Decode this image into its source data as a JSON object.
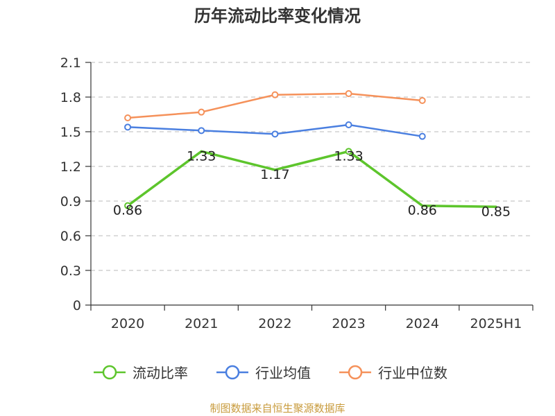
{
  "chart_data": {
    "type": "line",
    "title": "历年流动比率变化情况",
    "categories": [
      "2020",
      "2021",
      "2022",
      "2023",
      "2024",
      "2025H1"
    ],
    "ylim": [
      0,
      2.1
    ],
    "yticks": [
      "0",
      "0.3",
      "0.6",
      "0.9",
      "1.2",
      "1.5",
      "1.8",
      "2.1"
    ],
    "grid": true,
    "legend_position": "bottom",
    "series": [
      {
        "name": "流动比率",
        "color": "#5dc52c",
        "values": [
          0.86,
          1.33,
          1.17,
          1.33,
          0.86,
          0.85
        ],
        "labels": [
          "0.86",
          "1.33",
          "1.17",
          "1.33",
          "0.86",
          "0.85"
        ]
      },
      {
        "name": "行业均值",
        "color": "#4a7fe0",
        "values": [
          1.54,
          1.51,
          1.48,
          1.56,
          1.46,
          null
        ]
      },
      {
        "name": "行业中位数",
        "color": "#f5915a",
        "values": [
          1.62,
          1.67,
          1.82,
          1.83,
          1.77,
          null
        ]
      }
    ]
  },
  "source": {
    "text": "制图数据来自恒生聚源数据库",
    "color": "#c89b3c"
  }
}
